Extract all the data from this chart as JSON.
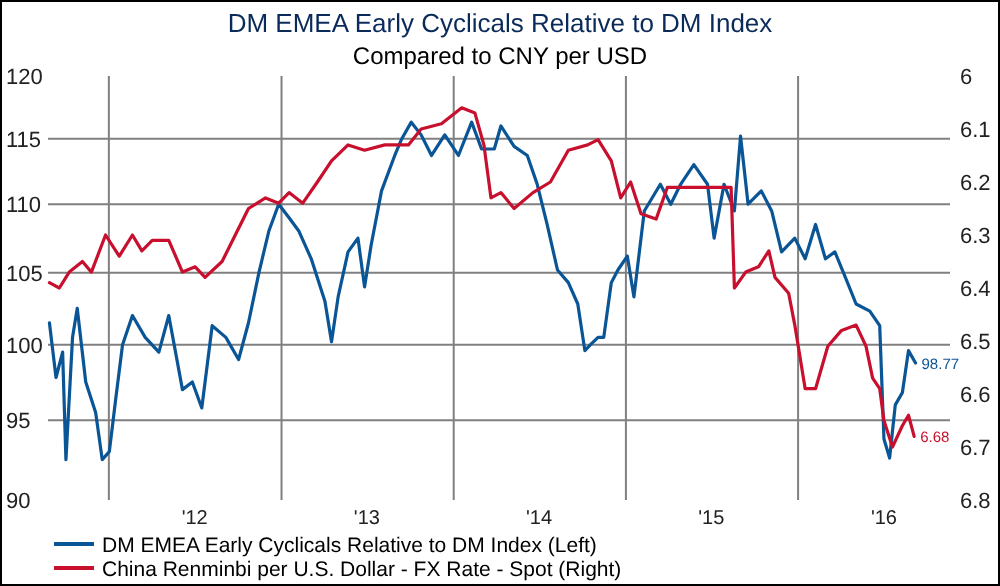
{
  "chart_data": {
    "type": "line",
    "title": "DM EMEA Early Cyclicals Relative to DM Index",
    "subtitle": "Compared to CNY per USD",
    "xlim": [
      "2011-08-25",
      "2016-11-18"
    ],
    "xticks": [
      {
        "value": "2012-01-01",
        "label": null
      },
      {
        "value": "2012-07-01",
        "label": "'12"
      },
      {
        "value": "2013-01-01",
        "label": null
      },
      {
        "value": "2013-07-01",
        "label": "'13"
      },
      {
        "value": "2014-01-01",
        "label": null
      },
      {
        "value": "2014-07-01",
        "label": "'14"
      },
      {
        "value": "2015-01-01",
        "label": null
      },
      {
        "value": "2015-07-01",
        "label": "'15"
      },
      {
        "value": "2016-01-01",
        "label": null
      },
      {
        "value": "2016-07-01",
        "label": "'16"
      }
    ],
    "ylim": [
      90,
      120
    ],
    "yticks": [
      90,
      95,
      100,
      105,
      110,
      115,
      120
    ],
    "log": "y",
    "y2lim": [
      6.8,
      6
    ],
    "y2ticks": [
      6,
      6.1,
      6.2,
      6.3,
      6.4,
      6.5,
      6.6,
      6.7,
      6.8
    ],
    "grid": true,
    "legend": "bottom",
    "series": [
      {
        "name": "DM EMEA Early Cyclicals Relative to DM Index  (Left)",
        "color": "#0a5596",
        "x": [
          "2011-08-28",
          "2011-09-11",
          "2011-09-25",
          "2011-10-02",
          "2011-10-16",
          "2011-10-26",
          "2011-11-13",
          "2011-12-04",
          "2011-12-18",
          "2012-01-02",
          "2012-01-16",
          "2012-01-30",
          "2012-02-20",
          "2012-03-18",
          "2012-04-16",
          "2012-05-07",
          "2012-06-05",
          "2012-06-26",
          "2012-07-16",
          "2012-08-07",
          "2012-09-05",
          "2012-10-02",
          "2012-10-23",
          "2012-11-14",
          "2012-12-05",
          "2012-12-26",
          "2013-01-17",
          "2013-02-07",
          "2013-03-05",
          "2013-04-03",
          "2013-04-17",
          "2013-05-01",
          "2013-05-22",
          "2013-06-12",
          "2013-06-26",
          "2013-07-10",
          "2013-08-01",
          "2013-08-29",
          "2013-09-13",
          "2013-10-03",
          "2013-10-24",
          "2013-11-15",
          "2013-12-13",
          "2014-01-11",
          "2014-02-08",
          "2014-03-01",
          "2014-03-28",
          "2014-04-11",
          "2014-05-09",
          "2014-06-06",
          "2014-06-27",
          "2014-07-18",
          "2014-08-09",
          "2014-09-01",
          "2014-09-21",
          "2014-10-06",
          "2014-10-18",
          "2014-11-03",
          "2014-11-15",
          "2014-12-01",
          "2014-12-15",
          "2015-01-04",
          "2015-01-18",
          "2015-02-09",
          "2015-03-15",
          "2015-04-06",
          "2015-04-27",
          "2015-05-25",
          "2015-06-23",
          "2015-07-07",
          "2015-07-28",
          "2015-08-19",
          "2015-09-01",
          "2015-09-17",
          "2015-10-15",
          "2015-11-06",
          "2015-11-27",
          "2015-12-25",
          "2016-01-16",
          "2016-02-07",
          "2016-02-28",
          "2016-03-19",
          "2016-04-10",
          "2016-05-03",
          "2016-06-01",
          "2016-06-22",
          "2016-07-01",
          "2016-07-13",
          "2016-07-25",
          "2016-08-09",
          "2016-08-22",
          "2016-09-06"
        ],
        "values": [
          101.5,
          97.8,
          99.5,
          92.5,
          100.5,
          102.5,
          97.5,
          95.5,
          92.5,
          93,
          96.5,
          100,
          102,
          100.5,
          99.5,
          102,
          97,
          97.5,
          95.8,
          101.3,
          100.5,
          99,
          101.5,
          105,
          108,
          110,
          109,
          108,
          106,
          103,
          100.2,
          103.3,
          106.5,
          107.5,
          104,
          107,
          111,
          113.7,
          115,
          116.3,
          115.3,
          113.7,
          115.3,
          113.7,
          116.3,
          114.2,
          114.2,
          116,
          114.4,
          113.7,
          111.5,
          108.5,
          105.2,
          104.3,
          102.8,
          99.6,
          100,
          100.5,
          100.5,
          104.3,
          105.2,
          106.2,
          103.3,
          109.5,
          111.5,
          110,
          111.5,
          113,
          111.5,
          107.5,
          111.5,
          109.5,
          115.2,
          110,
          111,
          109.5,
          106.5,
          107.5,
          106,
          108.5,
          106,
          106.5,
          104.7,
          102.8,
          102.3,
          101.3,
          93.8,
          92.6,
          96,
          96.8,
          99.6,
          98.77
        ],
        "value_labels": [
          null,
          null,
          null,
          null,
          null,
          null,
          null,
          null,
          null,
          null,
          null,
          null,
          null,
          null,
          null,
          null,
          null,
          null,
          null,
          null,
          null,
          null,
          null,
          null,
          null,
          null,
          null,
          null,
          null,
          null,
          null,
          null,
          null,
          null,
          null,
          null,
          null,
          null,
          null,
          null,
          null,
          null,
          null,
          null,
          null,
          null,
          null,
          null,
          null,
          null,
          null,
          null,
          null,
          null,
          null,
          null,
          null,
          null,
          null,
          null,
          null,
          null,
          null,
          null,
          null,
          null,
          null,
          null,
          null,
          null,
          null,
          null,
          null,
          null,
          null,
          null,
          null,
          null,
          null,
          null,
          null,
          null,
          null,
          null,
          null,
          null,
          null,
          null,
          null,
          null,
          null,
          "98.77"
        ]
      },
      {
        "name": "China Renminbi per U.S. Dollar - FX Rate - Spot  (Right)",
        "color": "#c8102e",
        "axis": "y2",
        "x": [
          "2011-08-28",
          "2011-09-18",
          "2011-10-09",
          "2011-11-06",
          "2011-11-25",
          "2011-12-25",
          "2012-01-23",
          "2012-02-20",
          "2012-03-11",
          "2012-04-02",
          "2012-05-07",
          "2012-06-05",
          "2012-07-02",
          "2012-07-23",
          "2012-08-28",
          "2012-09-25",
          "2012-10-23",
          "2012-11-28",
          "2012-12-26",
          "2013-01-17",
          "2013-02-15",
          "2013-03-18",
          "2013-04-17",
          "2013-05-22",
          "2013-06-26",
          "2013-08-08",
          "2013-09-27",
          "2013-10-24",
          "2013-12-06",
          "2014-01-18",
          "2014-02-15",
          "2014-03-06",
          "2014-03-21",
          "2014-04-11",
          "2014-05-09",
          "2014-06-18",
          "2014-07-25",
          "2014-09-01",
          "2014-10-12",
          "2014-11-03",
          "2014-12-01",
          "2014-12-21",
          "2015-01-11",
          "2015-02-02",
          "2015-03-06",
          "2015-03-30",
          "2015-05-03",
          "2015-06-08",
          "2015-07-21",
          "2015-08-12",
          "2015-08-19",
          "2015-09-12",
          "2015-10-09",
          "2015-10-31",
          "2015-11-13",
          "2015-12-12",
          "2015-12-25",
          "2016-01-16",
          "2016-02-07",
          "2016-03-04",
          "2016-04-02",
          "2016-05-03",
          "2016-05-24",
          "2016-06-07",
          "2016-06-22",
          "2016-07-01",
          "2016-07-19",
          "2016-08-09",
          "2016-08-22",
          "2016-09-03"
        ],
        "values": [
          6.39,
          6.4,
          6.37,
          6.35,
          6.37,
          6.3,
          6.34,
          6.3,
          6.33,
          6.31,
          6.31,
          6.37,
          6.36,
          6.38,
          6.35,
          6.3,
          6.25,
          6.23,
          6.24,
          6.22,
          6.24,
          6.2,
          6.16,
          6.13,
          6.14,
          6.13,
          6.13,
          6.1,
          6.09,
          6.06,
          6.07,
          6.13,
          6.23,
          6.22,
          6.25,
          6.22,
          6.2,
          6.14,
          6.13,
          6.12,
          6.16,
          6.23,
          6.2,
          6.26,
          6.27,
          6.21,
          6.21,
          6.21,
          6.21,
          6.21,
          6.4,
          6.37,
          6.36,
          6.33,
          6.38,
          6.41,
          6.47,
          6.59,
          6.59,
          6.51,
          6.48,
          6.47,
          6.51,
          6.57,
          6.59,
          6.65,
          6.7,
          6.66,
          6.64,
          6.68
        ],
        "value_labels": [
          null,
          null,
          null,
          null,
          null,
          null,
          null,
          null,
          null,
          null,
          null,
          null,
          null,
          null,
          null,
          null,
          null,
          null,
          null,
          null,
          null,
          null,
          null,
          null,
          null,
          null,
          null,
          null,
          null,
          null,
          null,
          null,
          null,
          null,
          null,
          null,
          null,
          null,
          null,
          null,
          null,
          null,
          null,
          null,
          null,
          null,
          null,
          null,
          null,
          null,
          null,
          null,
          null,
          null,
          null,
          null,
          null,
          null,
          null,
          null,
          null,
          null,
          null,
          null,
          null,
          null,
          null,
          null,
          null,
          "6.68"
        ]
      }
    ]
  }
}
